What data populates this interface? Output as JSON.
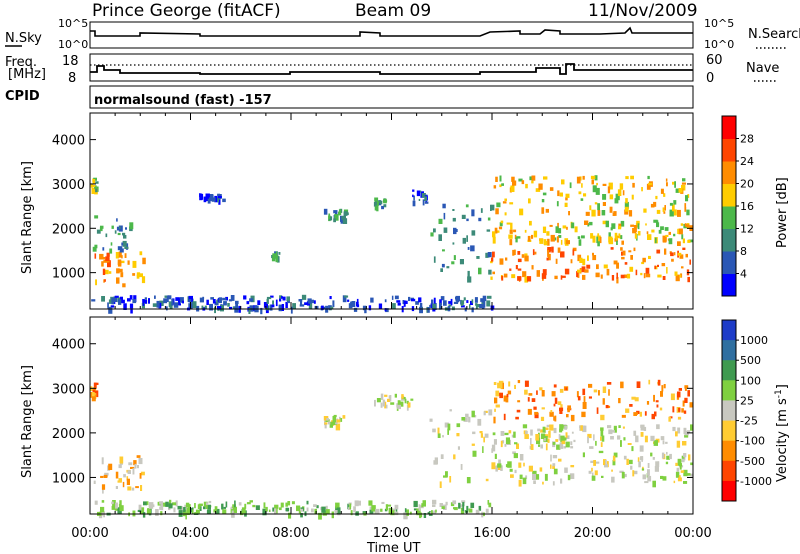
{
  "header": {
    "station": "Prince George (fitACF)",
    "beam": "Beam 09",
    "date": "11/Nov/2009"
  },
  "panels": {
    "nsky": {
      "label": "N.Sky",
      "left_ticks": [
        "10^5",
        "10^0"
      ],
      "right_ticks": [
        "10^5",
        "10^0"
      ],
      "right_label": "N.Search"
    },
    "freq": {
      "label_top": "Freq.",
      "label_bottom": "[MHz]",
      "left_ticks": [
        "18",
        "8"
      ],
      "right_ticks": [
        "60",
        "0"
      ],
      "right_label": "Nave"
    },
    "cpid": {
      "label": "CPID",
      "mode": "normalsound (fast) -157"
    }
  },
  "chart_data": [
    {
      "type": "heatmap",
      "name": "power",
      "ylabel": "Slant Range [km]",
      "ylim": [
        180,
        4600
      ],
      "yticks": [
        "1000",
        "2000",
        "3000",
        "4000"
      ],
      "xlabel": "Time UT",
      "xlim": [
        "00:00",
        "24:00"
      ],
      "xticks": [
        "00:00",
        "04:00",
        "08:00",
        "12:00",
        "16:00",
        "20:00",
        "00:00"
      ],
      "colorbar": {
        "label": "Power [dB]",
        "ticks": [
          "4",
          "8",
          "12",
          "16",
          "20",
          "24",
          "28"
        ],
        "colors": [
          "#0000ff",
          "#2a57b5",
          "#3c8a78",
          "#4cb84a",
          "#ffcc00",
          "#ff8c00",
          "#ff4500",
          "#ff0000"
        ]
      },
      "echo_regions": [
        {
          "t": [
            0.0,
            0.25
          ],
          "r": [
            2850,
            3150
          ],
          "level": 3
        },
        {
          "t": [
            0.0,
            2.1
          ],
          "r": [
            750,
            1500
          ],
          "level": 5
        },
        {
          "t": [
            0.1,
            1.6
          ],
          "r": [
            1500,
            2300
          ],
          "level": 2
        },
        {
          "t": [
            4.3,
            5.3
          ],
          "r": [
            2650,
            2800
          ],
          "level": 1
        },
        {
          "t": [
            7.2,
            7.5
          ],
          "r": [
            1350,
            1500
          ],
          "level": 2
        },
        {
          "t": [
            9.3,
            10.2
          ],
          "r": [
            2200,
            2450
          ],
          "level": 2
        },
        {
          "t": [
            11.3,
            11.7
          ],
          "r": [
            2500,
            2700
          ],
          "level": 2
        },
        {
          "t": [
            12.8,
            13.4
          ],
          "r": [
            2600,
            2900
          ],
          "level": 1
        },
        {
          "t": [
            13.5,
            16.0
          ],
          "r": [
            900,
            2600
          ],
          "level": 2
        },
        {
          "t": [
            15.9,
            23.9
          ],
          "r": [
            900,
            1600
          ],
          "level": 5
        },
        {
          "t": [
            16.0,
            23.9
          ],
          "r": [
            1700,
            2200
          ],
          "level": 4
        },
        {
          "t": [
            16.0,
            23.9
          ],
          "r": [
            2350,
            3200
          ],
          "level": 4
        },
        {
          "t": [
            0.0,
            16.0
          ],
          "r": [
            200,
            500
          ],
          "level": 1
        }
      ]
    },
    {
      "type": "heatmap",
      "name": "velocity",
      "ylabel": "Slant Range [km]",
      "ylim": [
        180,
        4600
      ],
      "yticks": [
        "1000",
        "2000",
        "3000",
        "4000"
      ],
      "xlabel": "Time UT",
      "xlim": [
        "00:00",
        "24:00"
      ],
      "xticks": [
        "00:00",
        "04:00",
        "08:00",
        "12:00",
        "16:00",
        "20:00",
        "00:00"
      ],
      "colorbar": {
        "label": "Velocity [m s^-1]",
        "ticks": [
          "1000",
          "500",
          "100",
          "25",
          "-25",
          "-100",
          "-500",
          "-1000"
        ],
        "colors": [
          "#1e3cc8",
          "#2f6fa0",
          "#3f9a50",
          "#7fd040",
          "#c8c8c0",
          "#ffcc33",
          "#ff8c00",
          "#ff4500",
          "#ff0000"
        ]
      },
      "echo_regions": [
        {
          "t": [
            0.0,
            0.25
          ],
          "r": [
            2850,
            3150
          ],
          "level": 6
        },
        {
          "t": [
            0.0,
            2.1
          ],
          "r": [
            750,
            1500
          ],
          "level": 5
        },
        {
          "t": [
            9.3,
            10.2
          ],
          "r": [
            2200,
            2450
          ],
          "level": 4
        },
        {
          "t": [
            11.3,
            12.8
          ],
          "r": [
            2600,
            2900
          ],
          "level": 4
        },
        {
          "t": [
            13.5,
            16.0
          ],
          "r": [
            900,
            2600
          ],
          "level": 4
        },
        {
          "t": [
            15.9,
            23.9
          ],
          "r": [
            900,
            1600
          ],
          "level": 4
        },
        {
          "t": [
            16.0,
            23.9
          ],
          "r": [
            1700,
            2200
          ],
          "level": 4
        },
        {
          "t": [
            16.0,
            23.9
          ],
          "r": [
            2350,
            3200
          ],
          "level": 6
        },
        {
          "t": [
            0.0,
            16.0
          ],
          "r": [
            200,
            500
          ],
          "level": 3
        }
      ]
    }
  ]
}
